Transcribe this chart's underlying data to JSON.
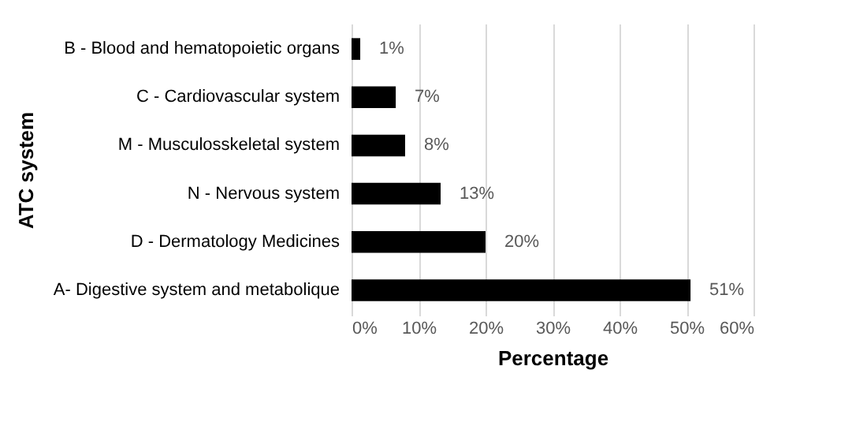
{
  "chart_data": {
    "type": "bar",
    "orientation": "horizontal",
    "categories": [
      "B - Blood and hematopoietic organs",
      "C - Cardiovascular system",
      "M - Musculosskeletal system",
      "N - Nervous system",
      "D - Dermatology Medicines",
      "A- Digestive system and metabolique"
    ],
    "values": [
      1.3,
      6.6,
      8,
      13.3,
      20,
      50.6
    ],
    "value_labels": [
      "1%",
      "7%",
      "8%",
      "13%",
      "20%",
      "51%"
    ],
    "color": "#000000",
    "xlabel": "Percentage",
    "ylabel": "ATC system",
    "xlim": [
      0,
      60
    ],
    "xticks": [
      {
        "value": 0,
        "label": "0%"
      },
      {
        "value": 10,
        "label": "10%"
      },
      {
        "value": 20,
        "label": "20%"
      },
      {
        "value": 30,
        "label": "30%"
      },
      {
        "value": 40,
        "label": "40%"
      },
      {
        "value": 50,
        "label": "50%"
      },
      {
        "value": 60,
        "label": "60%"
      }
    ],
    "grid": "x"
  }
}
